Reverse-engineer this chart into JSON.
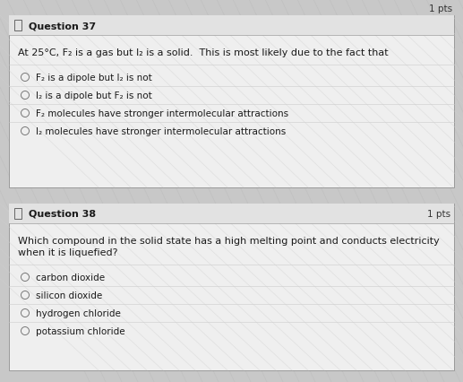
{
  "bg_color": "#c8c8c8",
  "card_color": "#efefef",
  "card_border_color": "#999999",
  "header_color": "#e2e2e2",
  "header_border_color": "#aaaaaa",
  "text_color": "#1a1a1a",
  "muted_color": "#666666",
  "line_color": "#cccccc",
  "pts_color": "#333333",
  "q37_pts": "1 pts",
  "q37_label": "Question 37",
  "q37_prompt": "At 25°C, F₂ is a gas but I₂ is a solid.  This is most likely due to the fact that",
  "q37_options": [
    "F₂ is a dipole but I₂ is not",
    "I₂ is a dipole but F₂ is not",
    "F₂ molecules have stronger intermolecular attractions",
    "I₂ molecules have stronger intermolecular attractions"
  ],
  "q38_pts": "1 pts",
  "q38_label": "Question 38",
  "q38_prompt": "Which compound in the solid state has a high melting point and conducts electricity\nwhen it is liquefied?",
  "q38_options": [
    "carbon dioxide",
    "silicon dioxide",
    "hydrogen chloride",
    "potassium chloride"
  ],
  "font_size_label": 8,
  "font_size_pts": 7.5,
  "font_size_prompt": 8,
  "font_size_option": 7.5
}
